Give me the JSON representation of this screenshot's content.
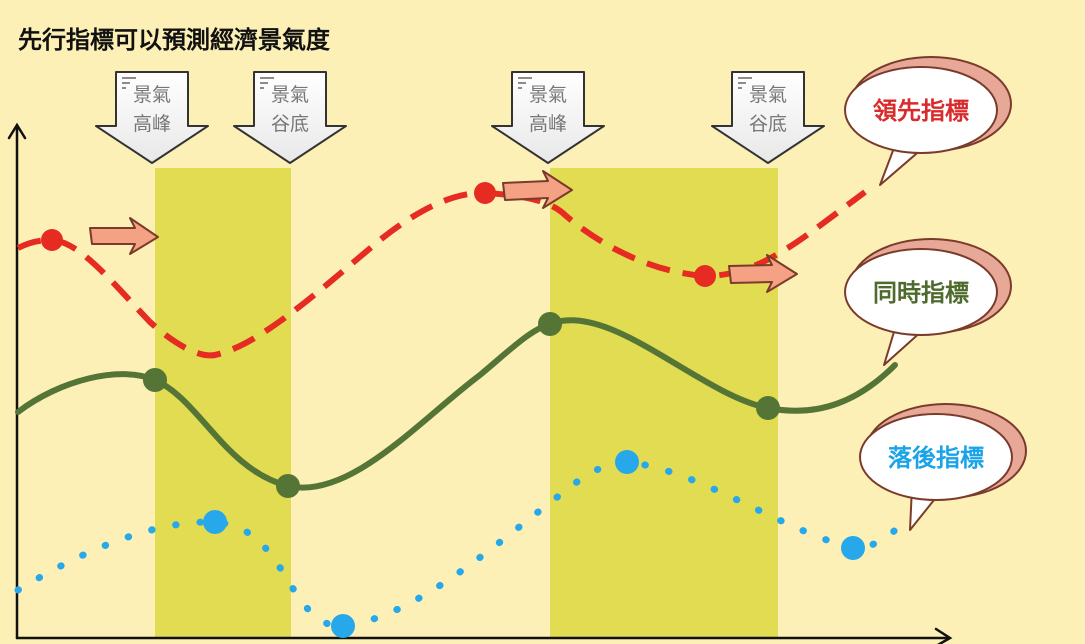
{
  "title": "先行指標可以預測經濟景氣度",
  "markers": [
    {
      "line1": "景氣",
      "line2": "高峰"
    },
    {
      "line1": "景氣",
      "line2": "谷底"
    },
    {
      "line1": "景氣",
      "line2": "高峰"
    },
    {
      "line1": "景氣",
      "line2": "谷底"
    }
  ],
  "bubbles": [
    {
      "label": "領先指標",
      "color": "#d92b2b"
    },
    {
      "label": "同時指標",
      "color": "#4e6b2d"
    },
    {
      "label": "落後指標",
      "color": "#1aa3e8"
    }
  ],
  "colors": {
    "background": "#fdf0b6",
    "band": "#e2dc52",
    "leading": "#e52b22",
    "coincident": "#557536",
    "lagging": "#27a8ea",
    "arrow_fill": "#f4a184",
    "arrow_stroke": "#7a3b2a",
    "bubble_outline": "#7a3b2a",
    "bubble_edge": "#e8a898"
  }
}
